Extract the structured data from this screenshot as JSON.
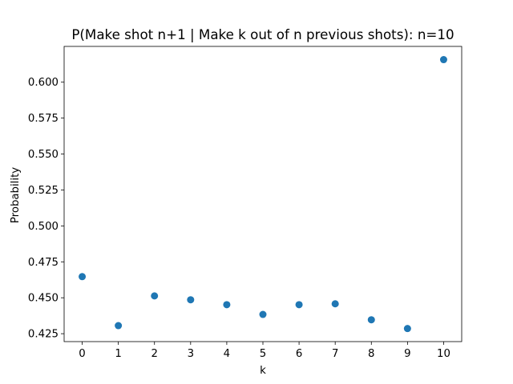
{
  "chart_data": {
    "type": "scatter",
    "title": "P(Make shot n+1 | Make k out of n previous shots): n=10",
    "xlabel": "k",
    "ylabel": "Probability",
    "x": [
      0,
      1,
      2,
      3,
      4,
      5,
      6,
      7,
      8,
      9,
      10
    ],
    "y": [
      0.4647,
      0.4306,
      0.4513,
      0.4486,
      0.4452,
      0.4384,
      0.4452,
      0.4458,
      0.4347,
      0.4286,
      0.6157
    ],
    "xlim": [
      -0.5,
      10.5
    ],
    "ylim": [
      0.4195,
      0.6249
    ],
    "xticks": [
      "0",
      "1",
      "2",
      "3",
      "4",
      "5",
      "6",
      "7",
      "8",
      "9",
      "10"
    ],
    "yticks": [
      "0.425",
      "0.450",
      "0.475",
      "0.500",
      "0.525",
      "0.550",
      "0.575",
      "0.600"
    ],
    "grid": false,
    "legend": "none",
    "colors": {
      "marker": "#1f77b4",
      "axis": "#000000",
      "background": "#ffffff"
    }
  }
}
